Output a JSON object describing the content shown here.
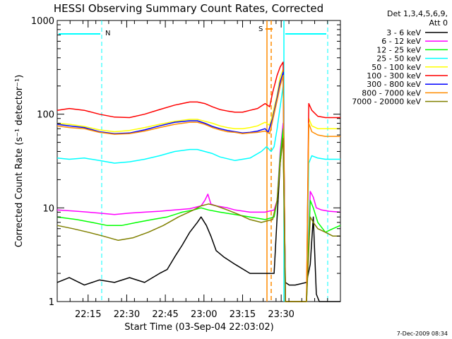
{
  "chart_data": {
    "type": "line",
    "title": "HESSI Observing Summary Count Rates, Corrected",
    "xlabel": "Start Time (03-Sep-04 22:03:02)",
    "ylabel": "Corrected Count Rate (s⁻¹ detector⁻¹)",
    "y_scale": "log",
    "ylim": [
      1,
      1000
    ],
    "xlim_minutes_after_2200": [
      3,
      39
    ],
    "x_ticks": [
      {
        "label": "22:15",
        "minute": 15
      },
      {
        "label": "22:30",
        "minute": 30
      },
      {
        "label": "22:45",
        "minute": 45
      },
      {
        "label": "23:00",
        "minute": 60
      },
      {
        "label": "23:15",
        "minute": 75
      },
      {
        "label": "23:30",
        "minute": 90
      }
    ],
    "y_ticks": [
      {
        "label": "1",
        "value": 1
      },
      {
        "label": "10",
        "value": 10
      },
      {
        "label": "100",
        "value": 100
      },
      {
        "label": "1000",
        "value": 1000
      }
    ],
    "legend_title": [
      "Det 1,3,4,5,6,9,",
      "Att 0"
    ],
    "legend_placement": "right",
    "series": [
      {
        "name": "3 - 6 keV",
        "color": "#000000",
        "points": [
          [
            64,
            1.6
          ],
          [
            80,
            1.8
          ],
          [
            100,
            1.5
          ],
          [
            120,
            1.7
          ],
          [
            140,
            1.6
          ],
          [
            160,
            1.8
          ],
          [
            180,
            1.6
          ],
          [
            200,
            2.0
          ],
          [
            210,
            2.2
          ],
          [
            220,
            3.0
          ],
          [
            230,
            4.0
          ],
          [
            240,
            5.5
          ],
          [
            250,
            7.0
          ],
          [
            255,
            8.0
          ],
          [
            262,
            6.5
          ],
          [
            268,
            5.0
          ],
          [
            275,
            3.5
          ],
          [
            285,
            3.0
          ],
          [
            300,
            2.5
          ],
          [
            320,
            2.0
          ],
          [
            340,
            2.0
          ],
          [
            352,
            2.0
          ],
          [
            356,
            8.0
          ],
          [
            360,
            30.0
          ],
          [
            364,
            60.0
          ],
          [
            367,
            1.6
          ],
          [
            372,
            1.5
          ],
          [
            380,
            1.5
          ],
          [
            395,
            1.6
          ],
          [
            400,
            2.5
          ],
          [
            404,
            8.0
          ],
          [
            408,
            1.2
          ],
          [
            412,
            1.0
          ],
          [
            416,
            1.0
          ],
          [
            420,
            1.0
          ],
          [
            430,
            1.0
          ],
          [
            440,
            1.0
          ]
        ]
      },
      {
        "name": "6 - 12 keV",
        "color": "#ff00ff",
        "points": [
          [
            64,
            9.5
          ],
          [
            90,
            9.2
          ],
          [
            120,
            8.8
          ],
          [
            140,
            8.5
          ],
          [
            160,
            8.8
          ],
          [
            180,
            9.0
          ],
          [
            200,
            9.2
          ],
          [
            220,
            9.5
          ],
          [
            240,
            9.8
          ],
          [
            255,
            10.5
          ],
          [
            260,
            12.0
          ],
          [
            264,
            14.0
          ],
          [
            268,
            11.0
          ],
          [
            275,
            10.5
          ],
          [
            290,
            10.0
          ],
          [
            300,
            9.5
          ],
          [
            320,
            9.0
          ],
          [
            340,
            9.0
          ],
          [
            352,
            9.5
          ],
          [
            356,
            12.0
          ],
          [
            360,
            40.0
          ],
          [
            364,
            80.0
          ],
          [
            367,
            1.0
          ],
          [
            372,
            1.0
          ],
          [
            395,
            1.0
          ],
          [
            400,
            15.0
          ],
          [
            404,
            13.0
          ],
          [
            408,
            10.0
          ],
          [
            415,
            9.5
          ],
          [
            425,
            9.2
          ],
          [
            440,
            9.0
          ]
        ]
      },
      {
        "name": "12 - 25 keV",
        "color": "#00ff00",
        "points": [
          [
            64,
            8.0
          ],
          [
            90,
            7.5
          ],
          [
            110,
            7.0
          ],
          [
            130,
            6.5
          ],
          [
            150,
            6.5
          ],
          [
            170,
            7.0
          ],
          [
            190,
            7.5
          ],
          [
            210,
            8.0
          ],
          [
            230,
            9.0
          ],
          [
            245,
            9.5
          ],
          [
            255,
            10.0
          ],
          [
            265,
            9.5
          ],
          [
            280,
            9.0
          ],
          [
            300,
            8.5
          ],
          [
            320,
            8.0
          ],
          [
            340,
            7.5
          ],
          [
            352,
            8.0
          ],
          [
            356,
            12.0
          ],
          [
            360,
            35.0
          ],
          [
            364,
            70.0
          ],
          [
            367,
            1.0
          ],
          [
            372,
            1.0
          ],
          [
            395,
            1.0
          ],
          [
            400,
            12.0
          ],
          [
            404,
            10.0
          ],
          [
            410,
            7.0
          ],
          [
            420,
            5.5
          ],
          [
            430,
            6.0
          ],
          [
            440,
            6.5
          ]
        ]
      },
      {
        "name": "25 - 50 keV",
        "color": "#00ffff",
        "points": [
          [
            64,
            34
          ],
          [
            80,
            33
          ],
          [
            100,
            34
          ],
          [
            120,
            32
          ],
          [
            140,
            30
          ],
          [
            160,
            31
          ],
          [
            180,
            33
          ],
          [
            200,
            36
          ],
          [
            220,
            40
          ],
          [
            240,
            42
          ],
          [
            250,
            42
          ],
          [
            260,
            40
          ],
          [
            270,
            38
          ],
          [
            280,
            35
          ],
          [
            300,
            32
          ],
          [
            320,
            34
          ],
          [
            335,
            40
          ],
          [
            342,
            45
          ],
          [
            348,
            40
          ],
          [
            352,
            45
          ],
          [
            356,
            70
          ],
          [
            360,
            120
          ],
          [
            364,
            200
          ],
          [
            367,
            1.0
          ],
          [
            372,
            1.0
          ],
          [
            395,
            1.0
          ],
          [
            398,
            30
          ],
          [
            402,
            36
          ],
          [
            410,
            34
          ],
          [
            420,
            33
          ],
          [
            440,
            33
          ]
        ]
      },
      {
        "name": "50 - 100 keV",
        "color": "#ffff00",
        "points": [
          [
            64,
            80
          ],
          [
            80,
            78
          ],
          [
            100,
            74
          ],
          [
            120,
            68
          ],
          [
            140,
            65
          ],
          [
            160,
            67
          ],
          [
            180,
            72
          ],
          [
            200,
            78
          ],
          [
            220,
            84
          ],
          [
            240,
            88
          ],
          [
            250,
            88
          ],
          [
            260,
            84
          ],
          [
            270,
            80
          ],
          [
            280,
            75
          ],
          [
            290,
            72
          ],
          [
            300,
            70
          ],
          [
            310,
            70
          ],
          [
            320,
            72
          ],
          [
            330,
            75
          ],
          [
            340,
            82
          ],
          [
            346,
            76
          ],
          [
            350,
            100
          ],
          [
            356,
            160
          ],
          [
            360,
            250
          ],
          [
            364,
            300
          ],
          [
            367,
            1.0
          ],
          [
            372,
            1.0
          ],
          [
            395,
            1.0
          ],
          [
            398,
            90
          ],
          [
            402,
            75
          ],
          [
            410,
            70
          ],
          [
            420,
            70
          ],
          [
            440,
            70
          ]
        ]
      },
      {
        "name": "100 - 300 keV",
        "color": "#ff0000",
        "points": [
          [
            64,
            110
          ],
          [
            80,
            115
          ],
          [
            100,
            110
          ],
          [
            120,
            100
          ],
          [
            140,
            93
          ],
          [
            160,
            92
          ],
          [
            180,
            100
          ],
          [
            200,
            112
          ],
          [
            220,
            125
          ],
          [
            240,
            135
          ],
          [
            250,
            135
          ],
          [
            260,
            130
          ],
          [
            270,
            120
          ],
          [
            280,
            112
          ],
          [
            290,
            108
          ],
          [
            300,
            105
          ],
          [
            310,
            105
          ],
          [
            320,
            110
          ],
          [
            330,
            115
          ],
          [
            340,
            130
          ],
          [
            346,
            120
          ],
          [
            350,
            170
          ],
          [
            356,
            260
          ],
          [
            360,
            320
          ],
          [
            364,
            360
          ],
          [
            367,
            1.0
          ],
          [
            372,
            1.0
          ],
          [
            395,
            1.0
          ],
          [
            398,
            130
          ],
          [
            402,
            110
          ],
          [
            410,
            95
          ],
          [
            420,
            92
          ],
          [
            440,
            92
          ]
        ]
      },
      {
        "name": "300 - 800 keV",
        "color": "#0000ff",
        "points": [
          [
            64,
            78
          ],
          [
            80,
            75
          ],
          [
            100,
            72
          ],
          [
            120,
            65
          ],
          [
            140,
            62
          ],
          [
            160,
            63
          ],
          [
            180,
            68
          ],
          [
            200,
            75
          ],
          [
            220,
            82
          ],
          [
            240,
            85
          ],
          [
            250,
            85
          ],
          [
            260,
            80
          ],
          [
            270,
            74
          ],
          [
            280,
            70
          ],
          [
            290,
            67
          ],
          [
            300,
            65
          ],
          [
            310,
            63
          ],
          [
            320,
            64
          ],
          [
            330,
            66
          ],
          [
            340,
            70
          ],
          [
            344,
            64
          ],
          [
            350,
            90
          ],
          [
            356,
            150
          ],
          [
            360,
            220
          ],
          [
            364,
            280
          ],
          [
            367,
            1.0
          ],
          [
            372,
            1.0
          ],
          [
            395,
            1.0
          ]
        ]
      },
      {
        "name": "800 - 7000 keV",
        "color": "#ff8c00",
        "points": [
          [
            64,
            75
          ],
          [
            80,
            72
          ],
          [
            100,
            70
          ],
          [
            120,
            64
          ],
          [
            140,
            61
          ],
          [
            160,
            62
          ],
          [
            180,
            66
          ],
          [
            200,
            72
          ],
          [
            220,
            78
          ],
          [
            240,
            82
          ],
          [
            250,
            82
          ],
          [
            260,
            78
          ],
          [
            270,
            72
          ],
          [
            280,
            68
          ],
          [
            290,
            65
          ],
          [
            300,
            64
          ],
          [
            310,
            62
          ],
          [
            320,
            63
          ],
          [
            330,
            64
          ],
          [
            340,
            66
          ],
          [
            346,
            62
          ],
          [
            350,
            85
          ],
          [
            356,
            140
          ],
          [
            360,
            200
          ],
          [
            364,
            260
          ],
          [
            367,
            1.0
          ],
          [
            372,
            1.0
          ],
          [
            395,
            1.0
          ],
          [
            398,
            80
          ],
          [
            402,
            65
          ],
          [
            410,
            60
          ],
          [
            420,
            58
          ],
          [
            440,
            58
          ]
        ]
      },
      {
        "name": "7000 - 20000 keV",
        "color": "#808000",
        "points": [
          [
            64,
            6.5
          ],
          [
            85,
            6.0
          ],
          [
            105,
            5.5
          ],
          [
            125,
            5.0
          ],
          [
            145,
            4.5
          ],
          [
            165,
            4.8
          ],
          [
            185,
            5.5
          ],
          [
            205,
            6.5
          ],
          [
            225,
            8.0
          ],
          [
            245,
            9.5
          ],
          [
            255,
            10.5
          ],
          [
            265,
            11.0
          ],
          [
            275,
            10.5
          ],
          [
            290,
            9.5
          ],
          [
            305,
            8.5
          ],
          [
            320,
            7.5
          ],
          [
            335,
            7.0
          ],
          [
            350,
            7.5
          ],
          [
            356,
            12.0
          ],
          [
            360,
            30.0
          ],
          [
            364,
            55.0
          ],
          [
            367,
            1.0
          ],
          [
            372,
            1.0
          ],
          [
            395,
            1.0
          ],
          [
            400,
            8.0
          ],
          [
            404,
            7.0
          ],
          [
            410,
            6.0
          ],
          [
            420,
            5.5
          ],
          [
            430,
            5.0
          ],
          [
            440,
            5.0
          ]
        ]
      }
    ],
    "annotations": [
      {
        "text": "N",
        "color": "#00ffff"
      },
      {
        "text": "S",
        "color": "#ff8c00"
      }
    ],
    "timestamp": "7-Dec-2009 08:34"
  }
}
